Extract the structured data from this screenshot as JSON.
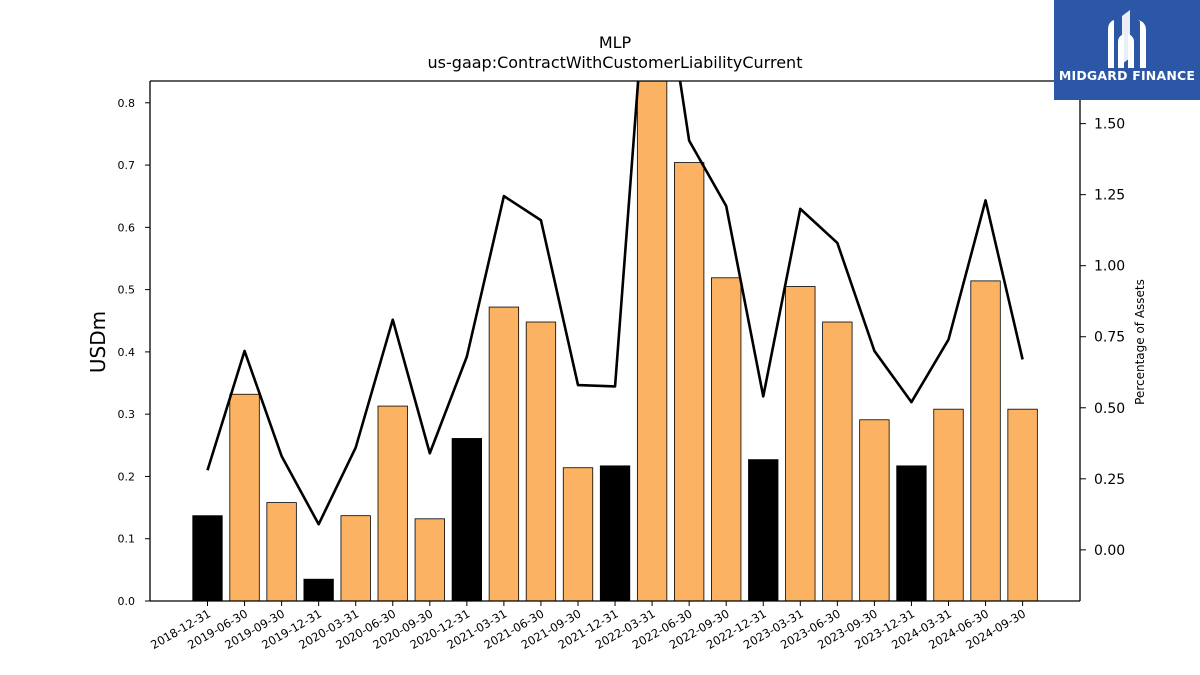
{
  "chart_data": {
    "type": "bar",
    "title": "MLP",
    "subtitle": "us-gaap:ContractWithCustomerLiabilityCurrent",
    "ylabel": "USDm",
    "ylabel_right": "Percentage of Assets",
    "ylim": [
      0,
      0.835
    ],
    "ylim_right": [
      -0.18,
      1.65
    ],
    "yticks": [
      "0.0",
      "0.1",
      "0.2",
      "0.3",
      "0.4",
      "0.5",
      "0.6",
      "0.7",
      "0.8"
    ],
    "yticks_right": [
      "0.00",
      "0.25",
      "0.50",
      "0.75",
      "1.00",
      "1.25",
      "1.50"
    ],
    "categories": [
      "2018-12-31",
      "2019-06-30",
      "2019-09-30",
      "2019-12-31",
      "2020-03-31",
      "2020-06-30",
      "2020-09-30",
      "2020-12-31",
      "2021-03-31",
      "2021-06-30",
      "2021-09-30",
      "2021-12-31",
      "2022-03-31",
      "2022-06-30",
      "2022-09-30",
      "2022-12-31",
      "2023-03-31",
      "2023-06-30",
      "2023-09-30",
      "2023-12-31",
      "2024-03-31",
      "2024-06-30",
      "2024-09-30"
    ],
    "series": [
      {
        "type": "bar",
        "values": [
          0.137,
          0.332,
          0.158,
          0.035,
          0.137,
          0.313,
          0.132,
          0.261,
          0.472,
          0.448,
          0.214,
          0.217,
          0.86,
          0.704,
          0.519,
          0.227,
          0.505,
          0.448,
          0.291,
          0.217,
          0.308,
          0.514,
          0.308
        ],
        "bar_colors": [
          "#000000",
          "#fbb263",
          "#fbb263",
          "#000000",
          "#fbb263",
          "#fbb263",
          "#fbb263",
          "#000000",
          "#fbb263",
          "#fbb263",
          "#fbb263",
          "#000000",
          "#fbb263",
          "#fbb263",
          "#fbb263",
          "#000000",
          "#fbb263",
          "#fbb263",
          "#fbb263",
          "#000000",
          "#fbb263",
          "#fbb263",
          "#fbb263"
        ]
      },
      {
        "type": "line",
        "axis": "right",
        "color": "#000000",
        "values": [
          0.28,
          0.7,
          0.33,
          0.09,
          0.36,
          0.81,
          0.34,
          0.68,
          1.245,
          1.16,
          0.58,
          0.575,
          2.3,
          1.44,
          1.21,
          0.54,
          1.2,
          1.08,
          0.7,
          0.52,
          0.74,
          1.23,
          0.67
        ]
      }
    ],
    "grid": false,
    "legend": "none"
  },
  "logo": {
    "text": "MIDGARD FINANCE",
    "background": "#2b57a6"
  }
}
